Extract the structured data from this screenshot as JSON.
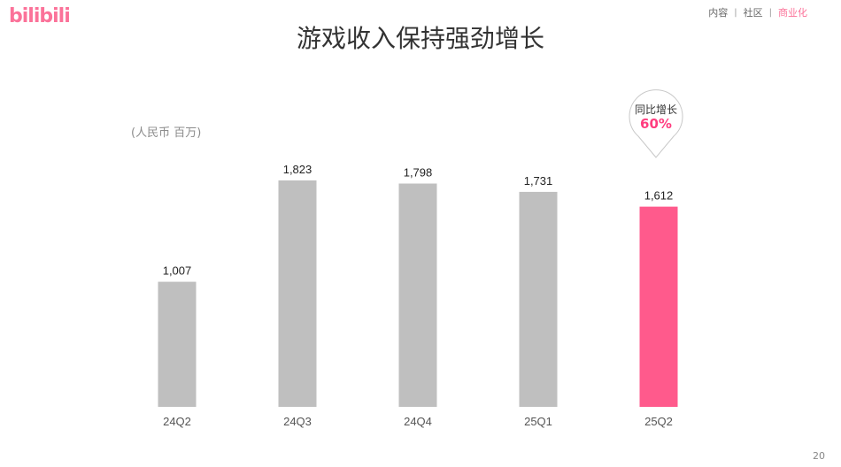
{
  "header": {
    "logo_text": "bilibili",
    "nav": [
      "内容",
      "社区",
      "商业化"
    ],
    "nav_active_index": 2,
    "title": "游戏收入保持强劲增长"
  },
  "unit_label": "(人民币 百万)",
  "callout": {
    "label": "同比增长",
    "value": "60%"
  },
  "page_number": "20",
  "colors": {
    "brand": "#fb7299",
    "highlight_bar": "#ff5a8c",
    "base_bar": "#bfbfbf",
    "callout_value": "#ff3d7f"
  },
  "chart_data": {
    "type": "bar",
    "categories": [
      "24Q2",
      "24Q3",
      "24Q4",
      "25Q1",
      "25Q2"
    ],
    "values": [
      1007,
      1823,
      1798,
      1731,
      1612
    ],
    "value_labels": [
      "1,007",
      "1,823",
      "1,798",
      "1,731",
      "1,612"
    ],
    "highlight_index": 4,
    "ylim": [
      0,
      2000
    ],
    "grid": false,
    "title": "",
    "xlabel": "",
    "ylabel": "(人民币 百万)"
  }
}
